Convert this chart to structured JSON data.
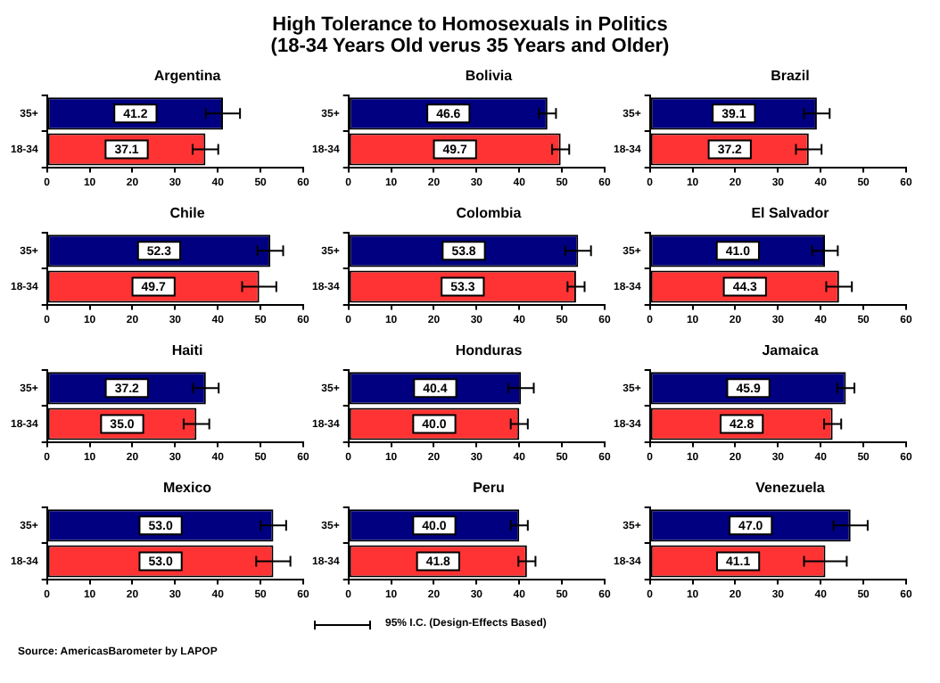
{
  "chart_data": [
    {
      "type": "other",
      "title": "High Tolerance to Homosexuals in Politics\n(18-34 Years Old verus 35 Years and Older)"
    },
    {
      "type": "bar",
      "orientation": "horizontal",
      "title": "Argentina",
      "categories": [
        "35+",
        "18-34"
      ],
      "values": [
        41.2,
        37.1
      ],
      "value_labels": [
        "41.2",
        "37.1"
      ],
      "errors": [
        4,
        3
      ],
      "colors": [
        "#000080",
        "#ff3333"
      ],
      "xlim": [
        0,
        60
      ],
      "xticks": [
        0,
        10,
        20,
        30,
        40,
        50,
        60
      ]
    },
    {
      "type": "bar",
      "orientation": "horizontal",
      "title": "Bolivia",
      "categories": [
        "35+",
        "18-34"
      ],
      "values": [
        46.6,
        49.7
      ],
      "value_labels": [
        "46.6",
        "49.7"
      ],
      "errors": [
        2,
        2
      ],
      "colors": [
        "#000080",
        "#ff3333"
      ],
      "xlim": [
        0,
        60
      ],
      "xticks": [
        0,
        10,
        20,
        30,
        40,
        50,
        60
      ]
    },
    {
      "type": "bar",
      "orientation": "horizontal",
      "title": "Brazil",
      "categories": [
        "35+",
        "18-34"
      ],
      "values": [
        39.1,
        37.2
      ],
      "value_labels": [
        "39.1",
        "37.2"
      ],
      "errors": [
        3,
        3
      ],
      "colors": [
        "#000080",
        "#ff3333"
      ],
      "xlim": [
        0,
        60
      ],
      "xticks": [
        0,
        10,
        20,
        30,
        40,
        50,
        60
      ]
    },
    {
      "type": "bar",
      "orientation": "horizontal",
      "title": "Chile",
      "categories": [
        "35+",
        "18-34"
      ],
      "values": [
        52.3,
        49.7
      ],
      "value_labels": [
        "52.3",
        "49.7"
      ],
      "errors": [
        3,
        4
      ],
      "colors": [
        "#000080",
        "#ff3333"
      ],
      "xlim": [
        0,
        60
      ],
      "xticks": [
        0,
        10,
        20,
        30,
        40,
        50,
        60
      ]
    },
    {
      "type": "bar",
      "orientation": "horizontal",
      "title": "Colombia",
      "categories": [
        "35+",
        "18-34"
      ],
      "values": [
        53.8,
        53.3
      ],
      "value_labels": [
        "53.8",
        "53.3"
      ],
      "errors": [
        3,
        2
      ],
      "colors": [
        "#000080",
        "#ff3333"
      ],
      "xlim": [
        0,
        60
      ],
      "xticks": [
        0,
        10,
        20,
        30,
        40,
        50,
        60
      ]
    },
    {
      "type": "bar",
      "orientation": "horizontal",
      "title": "El Salvador",
      "categories": [
        "35+",
        "18-34"
      ],
      "values": [
        41.0,
        44.3
      ],
      "value_labels": [
        "41.0",
        "44.3"
      ],
      "errors": [
        3,
        3
      ],
      "colors": [
        "#000080",
        "#ff3333"
      ],
      "xlim": [
        0,
        60
      ],
      "xticks": [
        0,
        10,
        20,
        30,
        40,
        50,
        60
      ]
    },
    {
      "type": "bar",
      "orientation": "horizontal",
      "title": "Haiti",
      "categories": [
        "35+",
        "18-34"
      ],
      "values": [
        37.2,
        35.0
      ],
      "value_labels": [
        "37.2",
        "35.0"
      ],
      "errors": [
        3,
        3
      ],
      "colors": [
        "#000080",
        "#ff3333"
      ],
      "xlim": [
        0,
        60
      ],
      "xticks": [
        0,
        10,
        20,
        30,
        40,
        50,
        60
      ]
    },
    {
      "type": "bar",
      "orientation": "horizontal",
      "title": "Honduras",
      "categories": [
        "35+",
        "18-34"
      ],
      "values": [
        40.4,
        40.0
      ],
      "value_labels": [
        "40.4",
        "40.0"
      ],
      "errors": [
        3,
        2
      ],
      "colors": [
        "#000080",
        "#ff3333"
      ],
      "xlim": [
        0,
        60
      ],
      "xticks": [
        0,
        10,
        20,
        30,
        40,
        50,
        60
      ]
    },
    {
      "type": "bar",
      "orientation": "horizontal",
      "title": "Jamaica",
      "categories": [
        "35+",
        "18-34"
      ],
      "values": [
        45.9,
        42.8
      ],
      "value_labels": [
        "45.9",
        "42.8"
      ],
      "errors": [
        2,
        2
      ],
      "colors": [
        "#000080",
        "#ff3333"
      ],
      "xlim": [
        0,
        60
      ],
      "xticks": [
        0,
        10,
        20,
        30,
        40,
        50,
        60
      ]
    },
    {
      "type": "bar",
      "orientation": "horizontal",
      "title": "Mexico",
      "categories": [
        "35+",
        "18-34"
      ],
      "values": [
        53.0,
        53.0
      ],
      "value_labels": [
        "53.0",
        "53.0"
      ],
      "errors": [
        3,
        4
      ],
      "colors": [
        "#000080",
        "#ff3333"
      ],
      "xlim": [
        0,
        60
      ],
      "xticks": [
        0,
        10,
        20,
        30,
        40,
        50,
        60
      ]
    },
    {
      "type": "bar",
      "orientation": "horizontal",
      "title": "Peru",
      "categories": [
        "35+",
        "18-34"
      ],
      "values": [
        40.0,
        41.8
      ],
      "value_labels": [
        "40.0",
        "41.8"
      ],
      "errors": [
        2,
        2
      ],
      "colors": [
        "#000080",
        "#ff3333"
      ],
      "xlim": [
        0,
        60
      ],
      "xticks": [
        0,
        10,
        20,
        30,
        40,
        50,
        60
      ]
    },
    {
      "type": "bar",
      "orientation": "horizontal",
      "title": "Venezuela",
      "categories": [
        "35+",
        "18-34"
      ],
      "values": [
        47.0,
        41.1
      ],
      "value_labels": [
        "47.0",
        "41.1"
      ],
      "errors": [
        4,
        5
      ],
      "colors": [
        "#000080",
        "#ff3333"
      ],
      "xlim": [
        0,
        60
      ],
      "xticks": [
        0,
        10,
        20,
        30,
        40,
        50,
        60
      ]
    },
    {
      "type": "other",
      "annotations": [
        "95% I.C. (Design-Effects Based)",
        "Source: AmericasBarometer by LAPOP"
      ]
    }
  ]
}
